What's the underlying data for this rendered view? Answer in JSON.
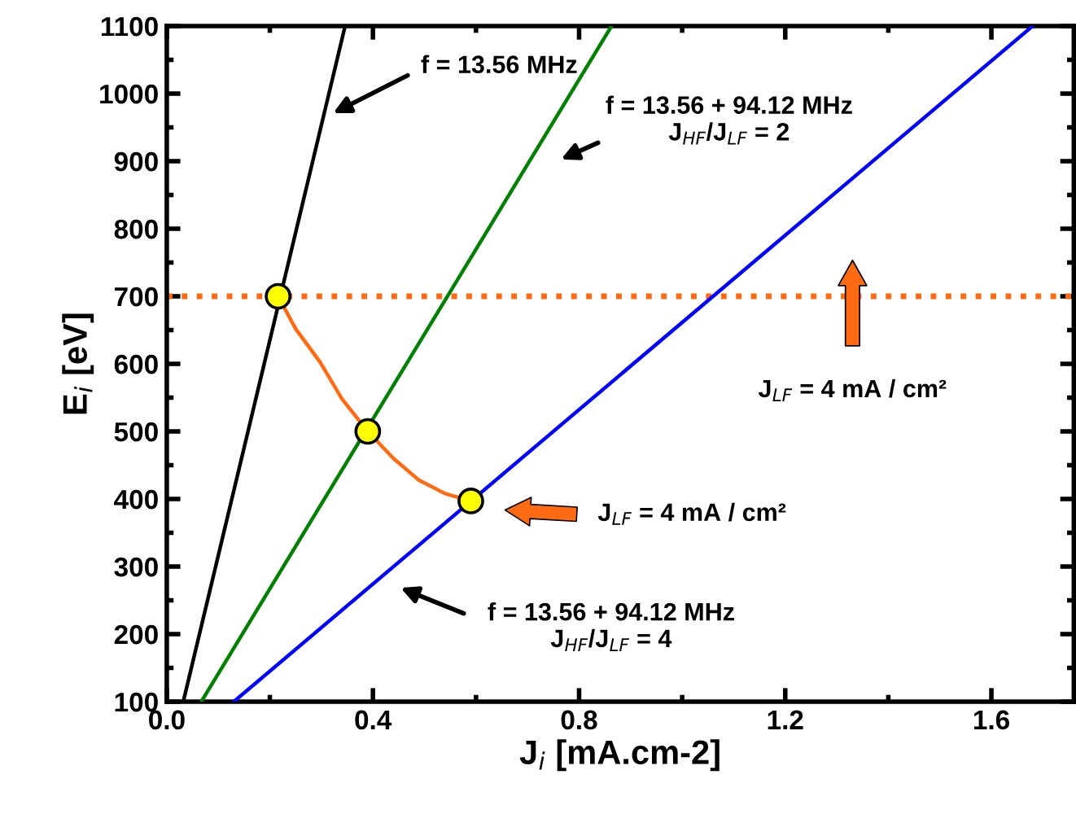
{
  "chart_data": {
    "type": "line",
    "xlabel": "J$_{i}$ [mA.cm-2]",
    "ylabel": "E$_{i}$ [eV]",
    "xlim": [
      0,
      1.76
    ],
    "ylim": [
      100,
      1100
    ],
    "xticks": [
      {
        "value": 0,
        "label": "0.0"
      },
      0.4,
      0.8,
      1.2,
      1.6
    ],
    "yticks": [
      100,
      200,
      300,
      400,
      500,
      600,
      700,
      800,
      900,
      1000,
      1100
    ],
    "grid": false,
    "series": [
      {
        "color": "#000000",
        "x": [
          0.032,
          0.346
        ],
        "values": [
          100,
          1100
        ]
      },
      {
        "color": "#008000",
        "x": [
          0.067,
          0.863
        ],
        "values": [
          100,
          1100
        ]
      },
      {
        "color": "#0000ff",
        "x": [
          0.13,
          1.68
        ],
        "values": [
          100,
          1100
        ]
      },
      {
        "color": "#ff6a13",
        "x": [
          0.216,
          0.25,
          0.298,
          0.34,
          0.39,
          0.44,
          0.489,
          0.54,
          0.59
        ],
        "values": [
          700,
          652,
          602,
          548,
          500,
          460,
          428,
          408,
          397
        ]
      },
      {
        "type": "scatter",
        "color": "#ffff00",
        "marker": "circle",
        "x": [
          0.216,
          0.39,
          0.59
        ],
        "values": [
          700,
          500,
          397
        ]
      }
    ],
    "ref_lines": [
      {
        "axis": "y",
        "value": 700,
        "color": "#ff6a13",
        "line_style": "dotted"
      }
    ],
    "annotations": [
      "f = 13.56 MHz",
      "f = 13.56 + 94.12 MHz\nJ$_{HF}$/J$_{LF}$ = 2",
      "J$_{LF}$ = 4 mA / cm²",
      "J$_{LF}$ = 4 mA / cm²",
      "f = 13.56 + 94.12 MHz\nJ$_{HF}$/J$_{LF}$ = 4"
    ]
  }
}
